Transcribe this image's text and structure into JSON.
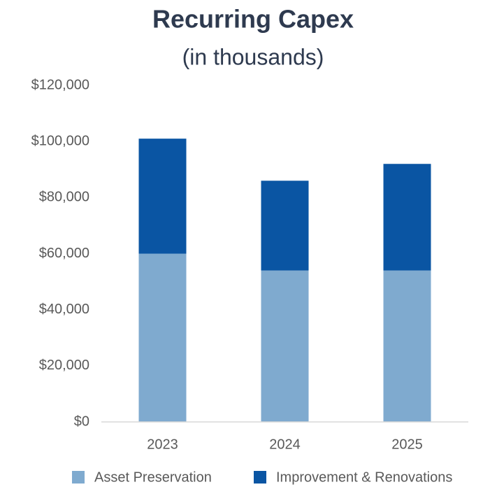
{
  "chart_data": {
    "type": "stacked_bar",
    "title": "Recurring Capex",
    "subtitle": "(in thousands)",
    "categories": [
      "2023",
      "2024",
      "2025"
    ],
    "series": [
      {
        "name": "Asset Preservation",
        "color": "#7faacf",
        "values": [
          60000,
          54000,
          54000
        ]
      },
      {
        "name": "Improvement & Renovations",
        "color": "#0a55a3",
        "values": [
          41000,
          32000,
          38000
        ]
      }
    ],
    "ylim": [
      0,
      120000
    ],
    "yticks": [
      {
        "value": 0,
        "label": "$0"
      },
      {
        "value": 20000,
        "label": "$20,000"
      },
      {
        "value": 40000,
        "label": "$40,000"
      },
      {
        "value": 60000,
        "label": "$60,000"
      },
      {
        "value": 80000,
        "label": "$80,000"
      },
      {
        "value": 100000,
        "label": "$100,000"
      },
      {
        "value": 120000,
        "label": "$120,000"
      }
    ],
    "grid": false,
    "legend": "bottom"
  }
}
